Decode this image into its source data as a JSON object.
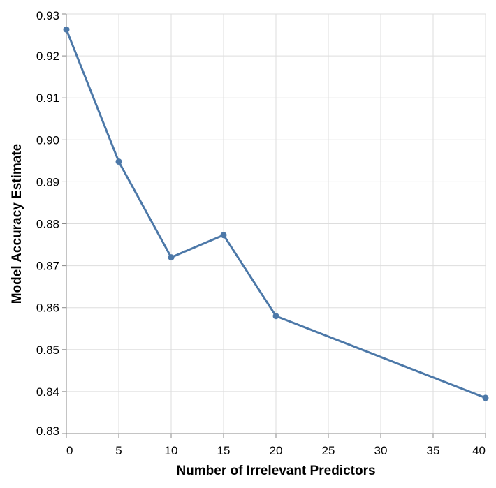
{
  "chart_data": {
    "type": "line",
    "title": "",
    "xlabel": "Number of Irrelevant Predictors",
    "ylabel": "Model Accuracy Estimate",
    "xlim": [
      0,
      40
    ],
    "ylim": [
      0.83,
      0.93
    ],
    "x_ticks": [
      0,
      5,
      10,
      15,
      20,
      25,
      30,
      35,
      40
    ],
    "x_tick_labels": [
      "0",
      "5",
      "10",
      "15",
      "20",
      "25",
      "30",
      "35",
      "40"
    ],
    "y_ticks": [
      0.83,
      0.84,
      0.85,
      0.86,
      0.87,
      0.88,
      0.89,
      0.9,
      0.91,
      0.92,
      0.93
    ],
    "y_tick_labels": [
      "0.83",
      "0.84",
      "0.85",
      "0.86",
      "0.87",
      "0.88",
      "0.89",
      "0.90",
      "0.91",
      "0.92",
      "0.93"
    ],
    "grid": true,
    "line_color": "#4c78a8",
    "series": [
      {
        "x": [
          0,
          5,
          10,
          15,
          20,
          40
        ],
        "y": [
          0.9263,
          0.8948,
          0.872,
          0.8773,
          0.858,
          0.8385
        ]
      }
    ]
  }
}
